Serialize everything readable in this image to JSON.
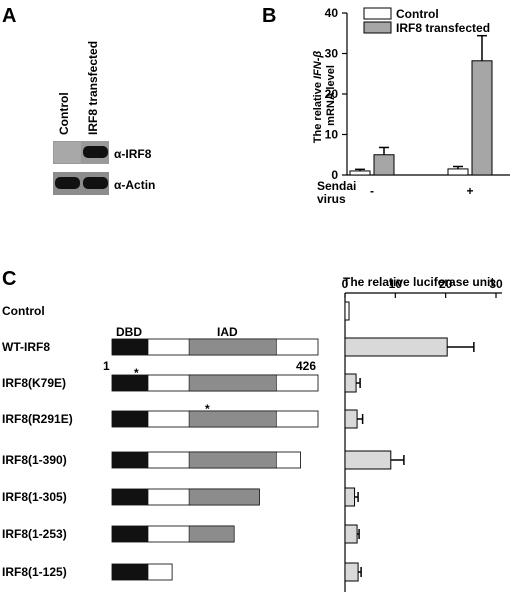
{
  "panels": {
    "a": "A",
    "b": "B",
    "c": "C"
  },
  "panel_a": {
    "lane_labels": [
      "Control",
      "IRF8 transfected"
    ],
    "blot_labels": [
      "α-IRF8",
      "α-Actin"
    ]
  },
  "panel_c": {
    "domain_labels": {
      "dbd": "DBD",
      "iad": "IAD"
    },
    "residue_start": "1",
    "residue_end": "426",
    "mutation_marker": "*"
  },
  "chart_data": [
    {
      "type": "bar",
      "panel": "B",
      "ylabel_parts": [
        "The relative ",
        "IFN-β",
        " mRNA level"
      ],
      "xlabel_lines": [
        "Sendai",
        "virus"
      ],
      "categories": [
        "-",
        "+"
      ],
      "yticks": [
        "0",
        "10",
        "20",
        "30",
        "40"
      ],
      "ylim": [
        0,
        40
      ],
      "series": [
        {
          "name": "Control",
          "values": [
            1.0,
            1.5
          ],
          "errors": [
            0.4,
            0.6
          ],
          "color": "#ffffff"
        },
        {
          "name": "IRF8 transfected",
          "values": [
            5.0,
            28.2
          ],
          "errors": [
            1.8,
            6.2
          ],
          "color": "#a6a6a6"
        }
      ],
      "legend": "top-left"
    },
    {
      "type": "bar",
      "panel": "C",
      "orientation": "horizontal",
      "title": "The relative luciferase unit",
      "xticks": [
        "0",
        "10",
        "20",
        "30"
      ],
      "xlim": [
        0,
        30
      ],
      "categories": [
        "Control",
        "WT-IRF8",
        "IRF8(K79E)",
        "IRF8(R291E)",
        "IRF8(1-390)",
        "IRF8(1-305)",
        "IRF8(1-253)",
        "IRF8(1-125)"
      ],
      "values": [
        0.8,
        20.3,
        2.2,
        2.4,
        9.1,
        1.9,
        2.4,
        2.6
      ],
      "errors": [
        0,
        5.3,
        0.8,
        1.1,
        2.6,
        0.7,
        0.4,
        0.6
      ],
      "colors": [
        "#ffffff",
        "#d9d9d9",
        "#d9d9d9",
        "#d9d9d9",
        "#d9d9d9",
        "#d9d9d9",
        "#d9d9d9",
        "#d9d9d9"
      ]
    }
  ]
}
